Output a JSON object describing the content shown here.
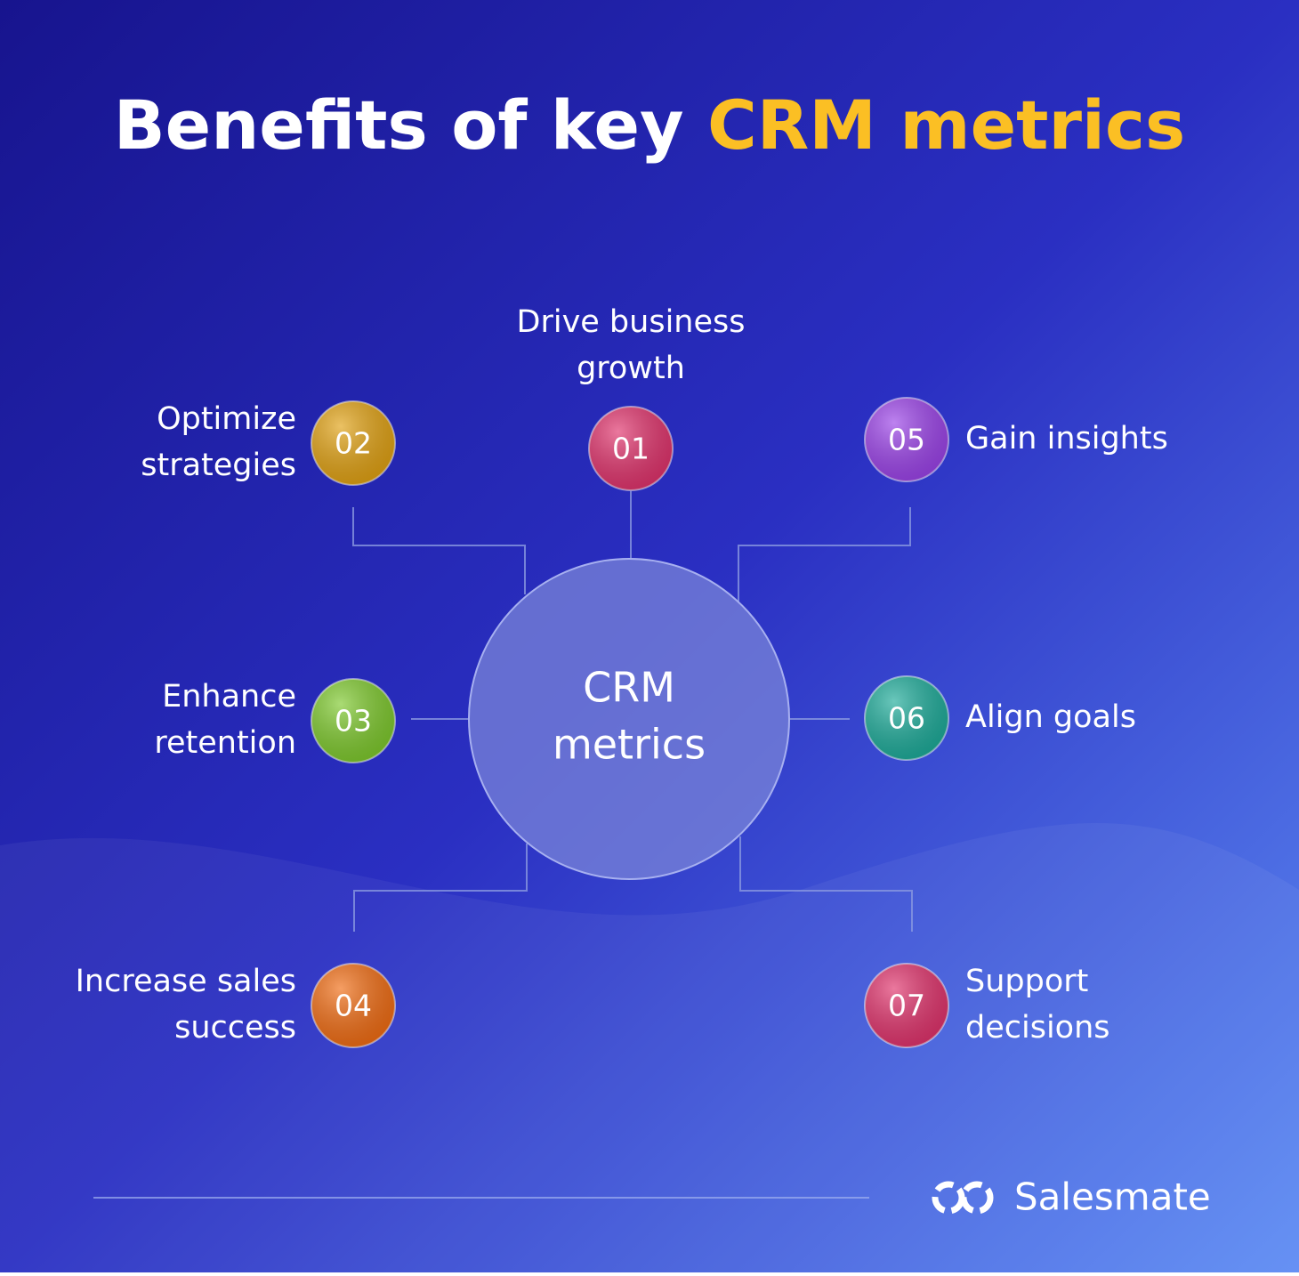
{
  "title": {
    "text": "Benefits of key",
    "highlight": "CRM metrics"
  },
  "center": {
    "label": [
      "CRM",
      "metrics"
    ]
  },
  "nodes": [
    {
      "number": "01",
      "label": [
        "Drive business",
        "growth"
      ],
      "color": "#e0306a"
    },
    {
      "number": "02",
      "label": [
        "Optimize",
        "strategies"
      ],
      "color": "#e0a010"
    },
    {
      "number": "03",
      "label": [
        "Enhance",
        "retention"
      ],
      "color": "#7cc82a"
    },
    {
      "number": "04",
      "label": [
        "Increase sales",
        "success"
      ],
      "color": "#f06a10"
    },
    {
      "number": "05",
      "label": [
        "Gain insights"
      ],
      "color": "#9a40e8"
    },
    {
      "number": "06",
      "label": [
        "Align goals"
      ],
      "color": "#1aaa98"
    },
    {
      "number": "07",
      "label": [
        "Support",
        "decisions"
      ],
      "color": "#e0306a"
    }
  ],
  "footer": {
    "brand": "Salesmate"
  }
}
